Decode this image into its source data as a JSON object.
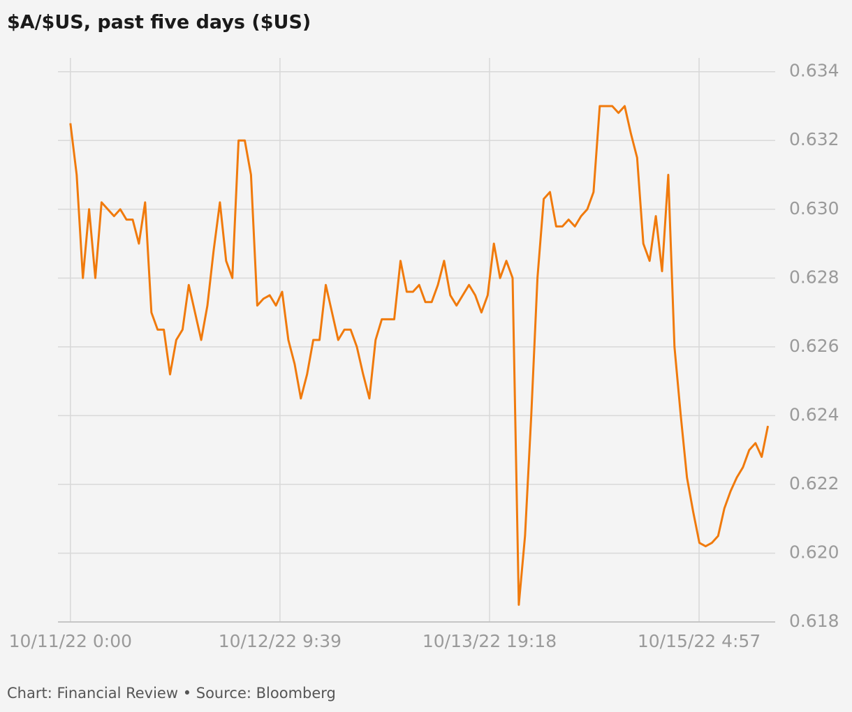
{
  "chart_data": {
    "type": "line",
    "title": "$A/$US, past five days ($US)",
    "source": "Chart: Financial Review • Source: Bloomberg",
    "x": [
      "10/11/22 0:00",
      "10/11/22 1:00",
      "10/11/22 2:00",
      "10/11/22 3:00",
      "10/11/22 4:00",
      "10/11/22 5:00",
      "10/11/22 6:00",
      "10/11/22 7:00",
      "10/11/22 8:00",
      "10/11/22 9:00",
      "10/11/22 10:00",
      "10/11/22 11:00",
      "10/11/22 12:00",
      "10/11/22 13:00",
      "10/11/22 14:00",
      "10/11/22 15:00",
      "10/11/22 16:00",
      "10/11/22 17:00",
      "10/11/22 18:00",
      "10/11/22 19:00",
      "10/11/22 20:00",
      "10/11/22 21:00",
      "10/11/22 22:00",
      "10/11/22 23:00",
      "10/12/22 0:00",
      "10/12/22 1:00",
      "10/12/22 2:00",
      "10/12/22 3:00",
      "10/12/22 4:00",
      "10/12/22 5:00",
      "10/12/22 6:00",
      "10/12/22 7:00",
      "10/12/22 8:00",
      "10/12/22 9:00",
      "10/12/22 10:00",
      "10/12/22 11:00",
      "10/12/22 12:00",
      "10/12/22 13:00",
      "10/12/22 14:00",
      "10/12/22 15:00",
      "10/12/22 16:00",
      "10/12/22 17:00",
      "10/12/22 18:00",
      "10/12/22 19:00",
      "10/12/22 20:00",
      "10/12/22 21:00",
      "10/12/22 22:00",
      "10/12/22 23:00",
      "10/13/22 0:00",
      "10/13/22 1:00",
      "10/13/22 2:00",
      "10/13/22 3:00",
      "10/13/22 4:00",
      "10/13/22 5:00",
      "10/13/22 6:00",
      "10/13/22 7:00",
      "10/13/22 8:00",
      "10/13/22 9:00",
      "10/13/22 10:00",
      "10/13/22 11:00",
      "10/13/22 12:00",
      "10/13/22 13:00",
      "10/13/22 14:00",
      "10/13/22 15:00",
      "10/13/22 16:00",
      "10/13/22 17:00",
      "10/13/22 18:00",
      "10/13/22 19:00",
      "10/13/22 20:00",
      "10/13/22 21:00",
      "10/13/22 22:00",
      "10/13/22 23:00",
      "10/14/22 0:00",
      "10/14/22 1:00",
      "10/14/22 2:00",
      "10/14/22 3:00",
      "10/14/22 4:00",
      "10/14/22 5:00",
      "10/14/22 6:00",
      "10/14/22 7:00",
      "10/14/22 8:00",
      "10/14/22 9:00",
      "10/14/22 10:00",
      "10/14/22 11:00",
      "10/14/22 12:00",
      "10/14/22 13:00",
      "10/14/22 14:00",
      "10/14/22 15:00",
      "10/14/22 16:00",
      "10/14/22 17:00",
      "10/14/22 18:00",
      "10/14/22 19:00",
      "10/14/22 20:00",
      "10/14/22 21:00",
      "10/14/22 22:00",
      "10/14/22 23:00",
      "10/15/22 0:00",
      "10/15/22 1:00",
      "10/15/22 2:00",
      "10/15/22 3:00",
      "10/15/22 4:00",
      "10/15/22 5:00",
      "10/15/22 6:00",
      "10/15/22 7:00",
      "10/15/22 8:00",
      "10/15/22 9:00",
      "10/15/22 10:00",
      "10/15/22 11:00",
      "10/15/22 12:00",
      "10/15/22 13:00",
      "10/15/22 14:00",
      "10/15/22 15:00",
      "10/15/22 16:00"
    ],
    "series": [
      {
        "name": "$A/$US",
        "color": "#f07a0c",
        "values": [
          0.6325,
          0.631,
          0.628,
          0.63,
          0.628,
          0.6302,
          0.63,
          0.6298,
          0.63,
          0.6297,
          0.6297,
          0.629,
          0.6302,
          0.627,
          0.6265,
          0.6265,
          0.6252,
          0.6262,
          0.6265,
          0.6278,
          0.627,
          0.6262,
          0.6272,
          0.6288,
          0.6302,
          0.6285,
          0.628,
          0.632,
          0.632,
          0.631,
          0.6272,
          0.6274,
          0.6275,
          0.6272,
          0.6276,
          0.6262,
          0.6255,
          0.6245,
          0.6252,
          0.6262,
          0.6262,
          0.6278,
          0.627,
          0.6262,
          0.6265,
          0.6265,
          0.626,
          0.6252,
          0.6245,
          0.6262,
          0.6268,
          0.6268,
          0.6268,
          0.6285,
          0.6276,
          0.6276,
          0.6278,
          0.6273,
          0.6273,
          0.6278,
          0.6285,
          0.6275,
          0.6272,
          0.6275,
          0.6278,
          0.6275,
          0.627,
          0.6275,
          0.629,
          0.628,
          0.6285,
          0.628,
          0.6185,
          0.6205,
          0.624,
          0.628,
          0.6303,
          0.6305,
          0.6295,
          0.6295,
          0.6297,
          0.6295,
          0.6298,
          0.63,
          0.6305,
          0.633,
          0.633,
          0.633,
          0.6328,
          0.633,
          0.6322,
          0.6315,
          0.629,
          0.6285,
          0.6298,
          0.6282,
          0.631,
          0.626,
          0.624,
          0.6222,
          0.6212,
          0.6203,
          0.6202,
          0.6203,
          0.6205,
          0.6213,
          0.6218,
          0.6222,
          0.6225,
          0.623,
          0.6232,
          0.6228,
          0.6237
        ]
      }
    ],
    "xlim": [
      "10/10/22 22:00",
      "10/15/22 17:10"
    ],
    "xticks": [
      "10/11/22 0:00",
      "10/12/22 9:39",
      "10/13/22 19:18",
      "10/15/22 4:57"
    ],
    "ylim": [
      0.618,
      0.6344
    ],
    "yticks": [
      0.618,
      {
        "value": 0.62,
        "label": "0.620"
      },
      0.622,
      0.624,
      0.626,
      0.628,
      {
        "value": 0.63,
        "label": "0.630"
      },
      0.632,
      0.634
    ],
    "grid": true
  }
}
